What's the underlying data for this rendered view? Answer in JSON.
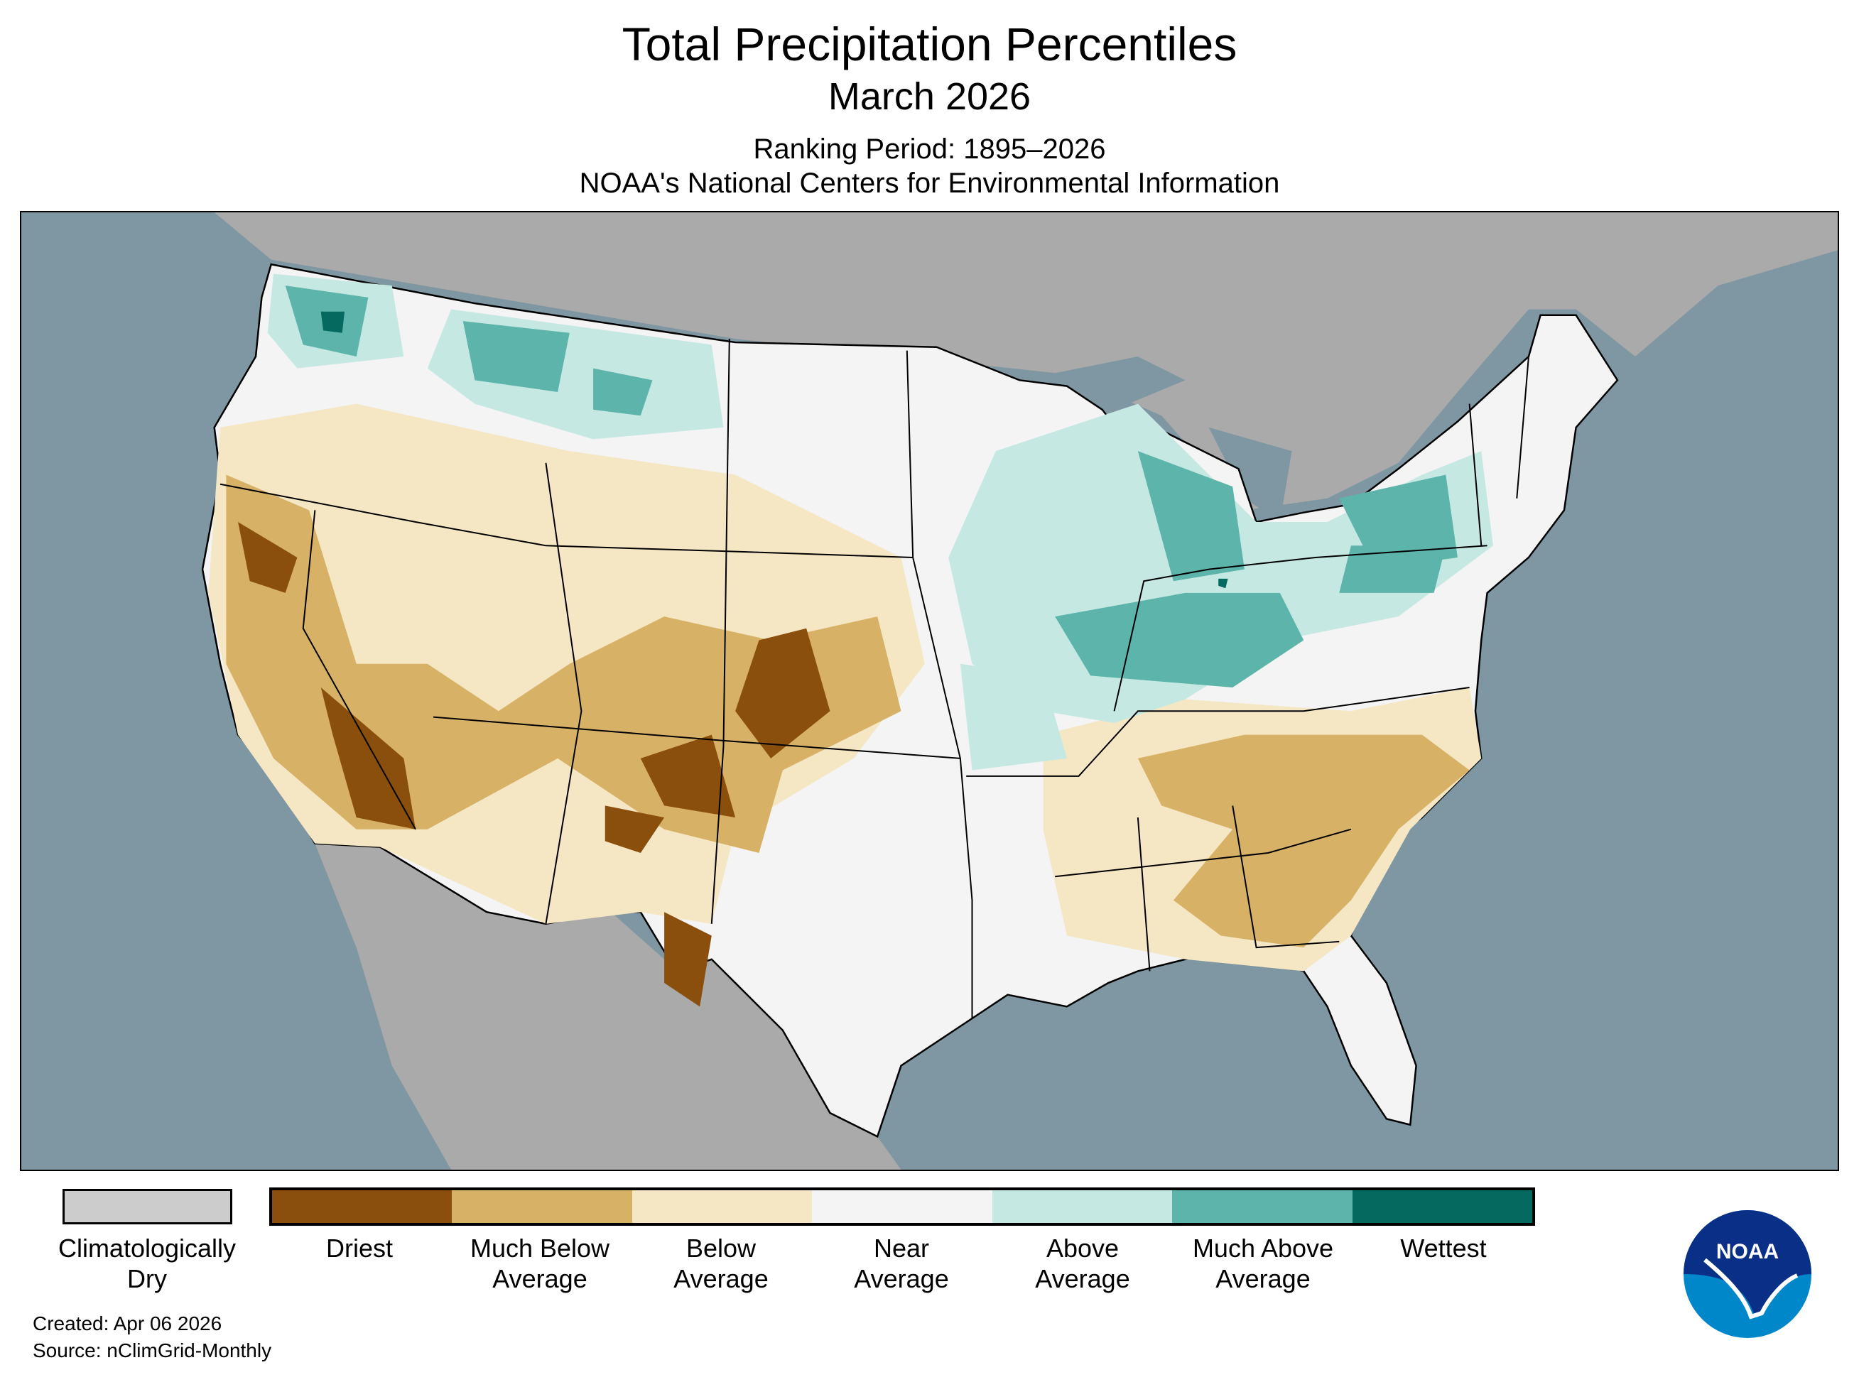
{
  "header": {
    "title": "Total Precipitation Percentiles",
    "subtitle": "March 2026",
    "ranking_period": "Ranking Period: 1895–2026",
    "organization": "NOAA's National Centers for Environmental Information"
  },
  "map": {
    "region": "Contiguous United States",
    "colors": {
      "ocean": "#7f97a2",
      "land_outside": "#aaaaaa",
      "borders": "#000000"
    }
  },
  "legend": {
    "climatologically_dry": {
      "line1": "Climatologically",
      "line2": "Dry",
      "color": "#cccccc"
    },
    "categories": [
      {
        "line1": "Driest",
        "line2": "",
        "color": "#8b4f0d"
      },
      {
        "line1": "Much Below",
        "line2": "Average",
        "color": "#d7b266"
      },
      {
        "line1": "Below",
        "line2": "Average",
        "color": "#f5e6c4"
      },
      {
        "line1": "Near",
        "line2": "Average",
        "color": "#f4f4f4"
      },
      {
        "line1": "Above",
        "line2": "Average",
        "color": "#c6e8e2"
      },
      {
        "line1": "Much Above",
        "line2": "Average",
        "color": "#5cb4ab"
      },
      {
        "line1": "Wettest",
        "line2": "",
        "color": "#046a5f"
      }
    ]
  },
  "footer": {
    "created": "Created: Apr 06 2026",
    "source": "Source: nClimGrid-Monthly"
  },
  "logo": {
    "text": "NOAA",
    "colors": {
      "top": "#0a2f87",
      "bottom": "#0087c9"
    }
  }
}
